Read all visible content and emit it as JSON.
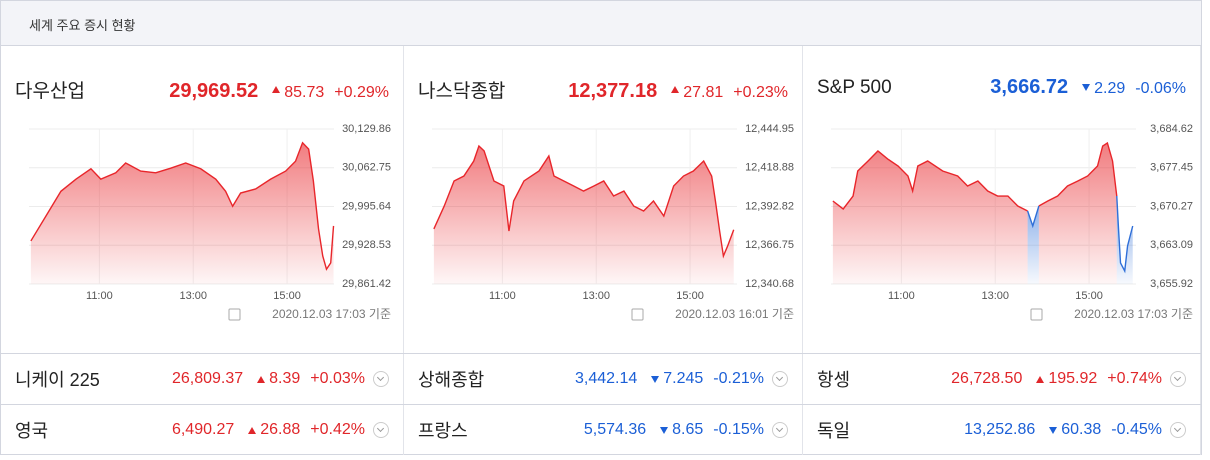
{
  "header": {
    "title": "세계 주요 증시 현황"
  },
  "colors": {
    "up": "#e0262a",
    "down": "#1b5fd6"
  },
  "panels": [
    {
      "name": "다우산업",
      "price": "29,969.52",
      "change": "85.73",
      "pct": "+0.29%",
      "direction": "up",
      "time_label": "2020.12.03 17:03 기준",
      "chart": {
        "type": "line",
        "x": [
          9.54,
          9.86,
          10.18,
          10.5,
          10.82,
          11.03,
          11.35,
          11.56,
          11.88,
          12.2,
          12.52,
          12.84,
          13.16,
          13.48,
          13.69,
          13.84,
          14.01,
          14.33,
          14.65,
          14.97,
          15.18,
          15.33,
          15.46,
          15.56,
          15.67,
          15.76,
          15.84,
          15.93,
          15.99
        ],
        "series": [
          {
            "color": "#e8262b",
            "values": [
              29936,
              29979,
              30022,
              30043,
              30061,
              30043,
              30054,
              30071,
              30057,
              30054,
              30062,
              30071,
              30061,
              30043,
              30022,
              29996,
              30019,
              30026,
              30043,
              30057,
              30074,
              30106,
              30095,
              30040,
              29957,
              29910,
              29887,
              29898,
              29962
            ]
          }
        ],
        "xlim": [
          9.5,
          16
        ],
        "xticks": [
          {
            "value": 11,
            "label": "11:00"
          },
          {
            "value": 13,
            "label": "13:00"
          },
          {
            "value": 15,
            "label": "15:00"
          }
        ],
        "ylim": [
          29861.42,
          30129.86
        ],
        "yticks": [
          {
            "value": 29861.42,
            "label": "29,861.42"
          },
          {
            "value": 29928.53,
            "label": "29,928.53"
          },
          {
            "value": 29995.64,
            "label": "29,995.64"
          },
          {
            "value": 30062.75,
            "label": "30,062.75"
          },
          {
            "value": 30129.86,
            "label": "30,129.86"
          }
        ]
      }
    },
    {
      "name": "나스닥종합",
      "price": "12,377.18",
      "change": "27.81",
      "pct": "+0.23%",
      "direction": "up",
      "time_label": "2020.12.03 16:01 기준",
      "chart": {
        "type": "line",
        "x": [
          9.54,
          9.76,
          9.97,
          10.18,
          10.39,
          10.5,
          10.61,
          10.82,
          11.03,
          11.14,
          11.24,
          11.46,
          11.78,
          11.99,
          12.1,
          12.31,
          12.52,
          12.73,
          12.95,
          13.16,
          13.37,
          13.59,
          13.8,
          14.01,
          14.22,
          14.44,
          14.65,
          14.86,
          15.07,
          15.29,
          15.46,
          15.54,
          15.63,
          15.71,
          15.8,
          15.93
        ],
        "series": [
          {
            "color": "#e8262b",
            "values": [
              12377.7,
              12393.1,
              12410.0,
              12413.3,
              12423.4,
              12433.5,
              12430.2,
              12410.0,
              12406.6,
              12376.3,
              12396.5,
              12410.0,
              12416.7,
              12426.8,
              12413.3,
              12410.0,
              12406.6,
              12403.2,
              12406.6,
              12410.0,
              12399.9,
              12403.2,
              12393.1,
              12389.8,
              12396.5,
              12386.4,
              12406.6,
              12413.3,
              12416.7,
              12423.4,
              12413.3,
              12396.5,
              12376.3,
              12359.5,
              12366.2,
              12377.2
            ]
          }
        ],
        "xlim": [
          9.5,
          16
        ],
        "xticks": [
          {
            "value": 11,
            "label": "11:00"
          },
          {
            "value": 13,
            "label": "13:00"
          },
          {
            "value": 15,
            "label": "15:00"
          }
        ],
        "ylim": [
          12340.68,
          12444.95
        ],
        "yticks": [
          {
            "value": 12340.68,
            "label": "12,340.68"
          },
          {
            "value": 12366.75,
            "label": "12,366.75"
          },
          {
            "value": 12392.82,
            "label": "12,392.82"
          },
          {
            "value": 12418.88,
            "label": "12,418.88"
          },
          {
            "value": 12444.95,
            "label": "12,444.95"
          }
        ]
      }
    },
    {
      "name": "S&P 500",
      "price": "3,666.72",
      "change": "2.29",
      "pct": "-0.06%",
      "direction": "down",
      "time_label": "2020.12.03 17:03 기준",
      "chart": {
        "type": "line",
        "x": [
          9.54,
          9.76,
          9.97,
          10.07,
          10.29,
          10.5,
          10.71,
          10.93,
          11.14,
          11.24,
          11.35,
          11.56,
          11.88,
          12.2,
          12.41,
          12.63,
          12.84,
          13.05,
          13.27,
          13.48,
          13.69,
          13.8,
          13.93,
          14.12,
          14.33,
          14.54,
          14.76,
          14.97,
          15.18,
          15.29,
          15.39,
          15.5,
          15.59,
          15.63,
          15.67,
          15.76,
          15.82,
          15.93
        ],
        "series": [
          {
            "color": "#e8262b",
            "values": [
              3671.29,
              3669.81,
              3672.21,
              3676.84,
              3678.7,
              3680.55,
              3679.06,
              3677.77,
              3675.92,
              3673.14,
              3677.77,
              3678.7,
              3676.84,
              3675.92,
              3674.07,
              3674.99,
              3673.14,
              3672.21,
              3672.21,
              3670.36,
              3669.44,
              null,
              3670.36,
              3671.29,
              3672.21,
              3674.07,
              3674.99,
              3675.92,
              3677.77,
              3681.47,
              3682.03,
              3678.7,
              3672.21,
              null,
              null,
              null,
              null,
              null
            ]
          },
          {
            "color": "#2f6fd8",
            "values": [
              null,
              null,
              null,
              null,
              null,
              null,
              null,
              null,
              null,
              null,
              null,
              null,
              null,
              null,
              null,
              null,
              null,
              null,
              null,
              null,
              3669.44,
              3666.66,
              3670.36,
              null,
              null,
              null,
              null,
              null,
              null,
              null,
              null,
              null,
              3672.21,
              3665.73,
              3659.81,
              3658.33,
              3662.96,
              3666.66
            ]
          }
        ],
        "xlim": [
          9.5,
          16
        ],
        "xticks": [
          {
            "value": 11,
            "label": "11:00"
          },
          {
            "value": 13,
            "label": "13:00"
          },
          {
            "value": 15,
            "label": "15:00"
          }
        ],
        "ylim": [
          3655.92,
          3684.62
        ],
        "yticks": [
          {
            "value": 3655.92,
            "label": "3,655.92"
          },
          {
            "value": 3663.09,
            "label": "3,663.09"
          },
          {
            "value": 3670.27,
            "label": "3,670.27"
          },
          {
            "value": 3677.45,
            "label": "3,677.45"
          },
          {
            "value": 3684.62,
            "label": "3,684.62"
          }
        ]
      }
    }
  ],
  "rows": [
    [
      {
        "name": "니케이 225",
        "price": "26,809.37",
        "change": "8.39",
        "pct": "+0.03%",
        "direction": "up"
      },
      {
        "name": "상해종합",
        "price": "3,442.14",
        "change": "7.245",
        "pct": "-0.21%",
        "direction": "down"
      },
      {
        "name": "항셍",
        "price": "26,728.50",
        "change": "195.92",
        "pct": "+0.74%",
        "direction": "up"
      }
    ],
    [
      {
        "name": "영국",
        "price": "6,490.27",
        "change": "26.88",
        "pct": "+0.42%",
        "direction": "up"
      },
      {
        "name": "프랑스",
        "price": "5,574.36",
        "change": "8.65",
        "pct": "-0.15%",
        "direction": "down"
      },
      {
        "name": "독일",
        "price": "13,252.86",
        "change": "60.38",
        "pct": "-0.45%",
        "direction": "down"
      }
    ]
  ]
}
